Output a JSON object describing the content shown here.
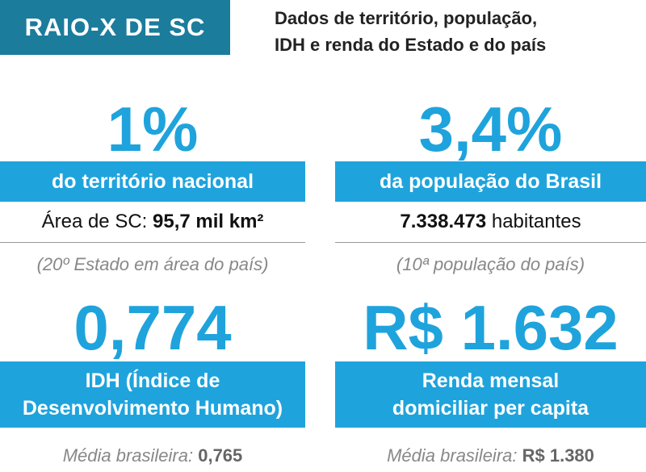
{
  "header": {
    "title": "RAIO-X DE SC",
    "subtitle": [
      "Dados de território, população,",
      "IDH e renda do Estado e do país"
    ]
  },
  "cards": [
    {
      "figure": "1%",
      "label": [
        "do território nacional"
      ],
      "detail": [
        {
          "text": "Área de SC: ",
          "bold": false
        },
        {
          "text": "95,7 mil km²",
          "bold": true
        }
      ],
      "note": [
        {
          "text": "(20º Estado em área do país)",
          "bold": false
        }
      ]
    },
    {
      "figure": "3,4%",
      "label": [
        "da população do Brasil"
      ],
      "detail": [
        {
          "text": "7.338.473",
          "bold": true
        },
        {
          "text": " habitantes",
          "bold": false
        }
      ],
      "note": [
        {
          "text": "(10ª população do país)",
          "bold": false
        }
      ]
    },
    {
      "figure": "0,774",
      "label": [
        "IDH (Índice de",
        "Desenvolvimento Humano)"
      ],
      "note": [
        {
          "text": "Média brasileira: ",
          "bold": false
        },
        {
          "text": "0,765",
          "bold": true
        }
      ]
    },
    {
      "figure": "R$ 1.632",
      "label": [
        "Renda mensal",
        "domiciliar per capita"
      ],
      "note": [
        {
          "text": "Média brasileira: ",
          "bold": false
        },
        {
          "text": "R$ 1.380",
          "bold": true
        }
      ]
    }
  ]
}
